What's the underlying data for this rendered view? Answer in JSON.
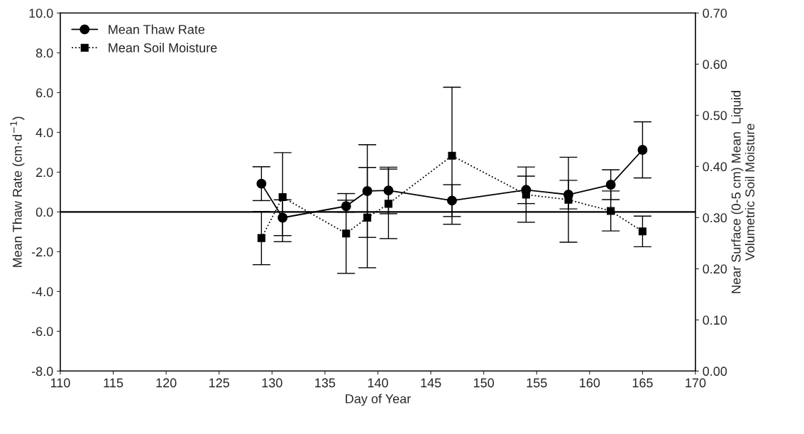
{
  "chart_data": {
    "type": "line",
    "xlabel": "Day of Year",
    "ylabel": "Mean Thaw Rate (cm·d$^{−1}$)",
    "y2label": "Near Surface (0-5 cm) Mean  Liquid\nVolumetric Soil Moisture",
    "x": [
      129,
      131,
      137,
      139,
      141,
      147,
      154,
      158,
      162,
      165
    ],
    "series": [
      {
        "name": "Mean Thaw Rate",
        "color": "#000000",
        "marker": "circle",
        "line_style": "solid",
        "values": [
          1.42,
          -0.29,
          0.29,
          1.05,
          1.08,
          0.57,
          1.11,
          0.87,
          1.37,
          3.12
        ],
        "errors": [
          0.85,
          0.9,
          0.3,
          2.33,
          1.17,
          0.8,
          0.69,
          0.72,
          0.75,
          1.41
        ]
      },
      {
        "name": "Mean Soil Moisture",
        "color": "#000000",
        "marker": "square",
        "line_style": "dotted",
        "axis": "y2",
        "values": [
          0.26,
          0.34,
          0.269,
          0.3,
          0.327,
          0.421,
          0.345,
          0.335,
          0.313,
          0.273
        ],
        "errors": [
          0.052,
          0.087,
          0.078,
          0.098,
          0.068,
          0.134,
          0.054,
          0.083,
          0.039,
          0.03
        ]
      }
    ],
    "xlim": [
      110,
      170
    ],
    "xticks": [
      110,
      115,
      120,
      125,
      130,
      135,
      140,
      145,
      150,
      155,
      160,
      165,
      170
    ],
    "ylim": [
      -8,
      10
    ],
    "yticks": [
      {
        "value": -8,
        "label": "-8.0"
      },
      {
        "value": -6,
        "label": "-6.0"
      },
      {
        "value": -4,
        "label": "-4.0"
      },
      {
        "value": -2,
        "label": "-2.0"
      },
      {
        "value": 0,
        "label": "0.0"
      },
      {
        "value": 2,
        "label": "2.0"
      },
      {
        "value": 4,
        "label": "4.0"
      },
      {
        "value": 6,
        "label": "6.0"
      },
      {
        "value": 8,
        "label": "8.0"
      },
      {
        "value": 10,
        "label": "10.0"
      }
    ],
    "y2lim": [
      0,
      0.7
    ],
    "y2ticks": [
      {
        "value": 0,
        "label": "0.00"
      },
      {
        "value": 0.1,
        "label": "0.10"
      },
      {
        "value": 0.2,
        "label": "0.20"
      },
      {
        "value": 0.3,
        "label": "0.30"
      },
      {
        "value": 0.4,
        "label": "0.40"
      },
      {
        "value": 0.5,
        "label": "0.50"
      },
      {
        "value": 0.6,
        "label": "0.60"
      },
      {
        "value": 0.7,
        "label": "0.70"
      }
    ],
    "ref_lines": [
      {
        "axis": "y",
        "value": 0,
        "color": "#000000",
        "line_style": "solid"
      }
    ],
    "legend": "top left",
    "grid": false
  }
}
